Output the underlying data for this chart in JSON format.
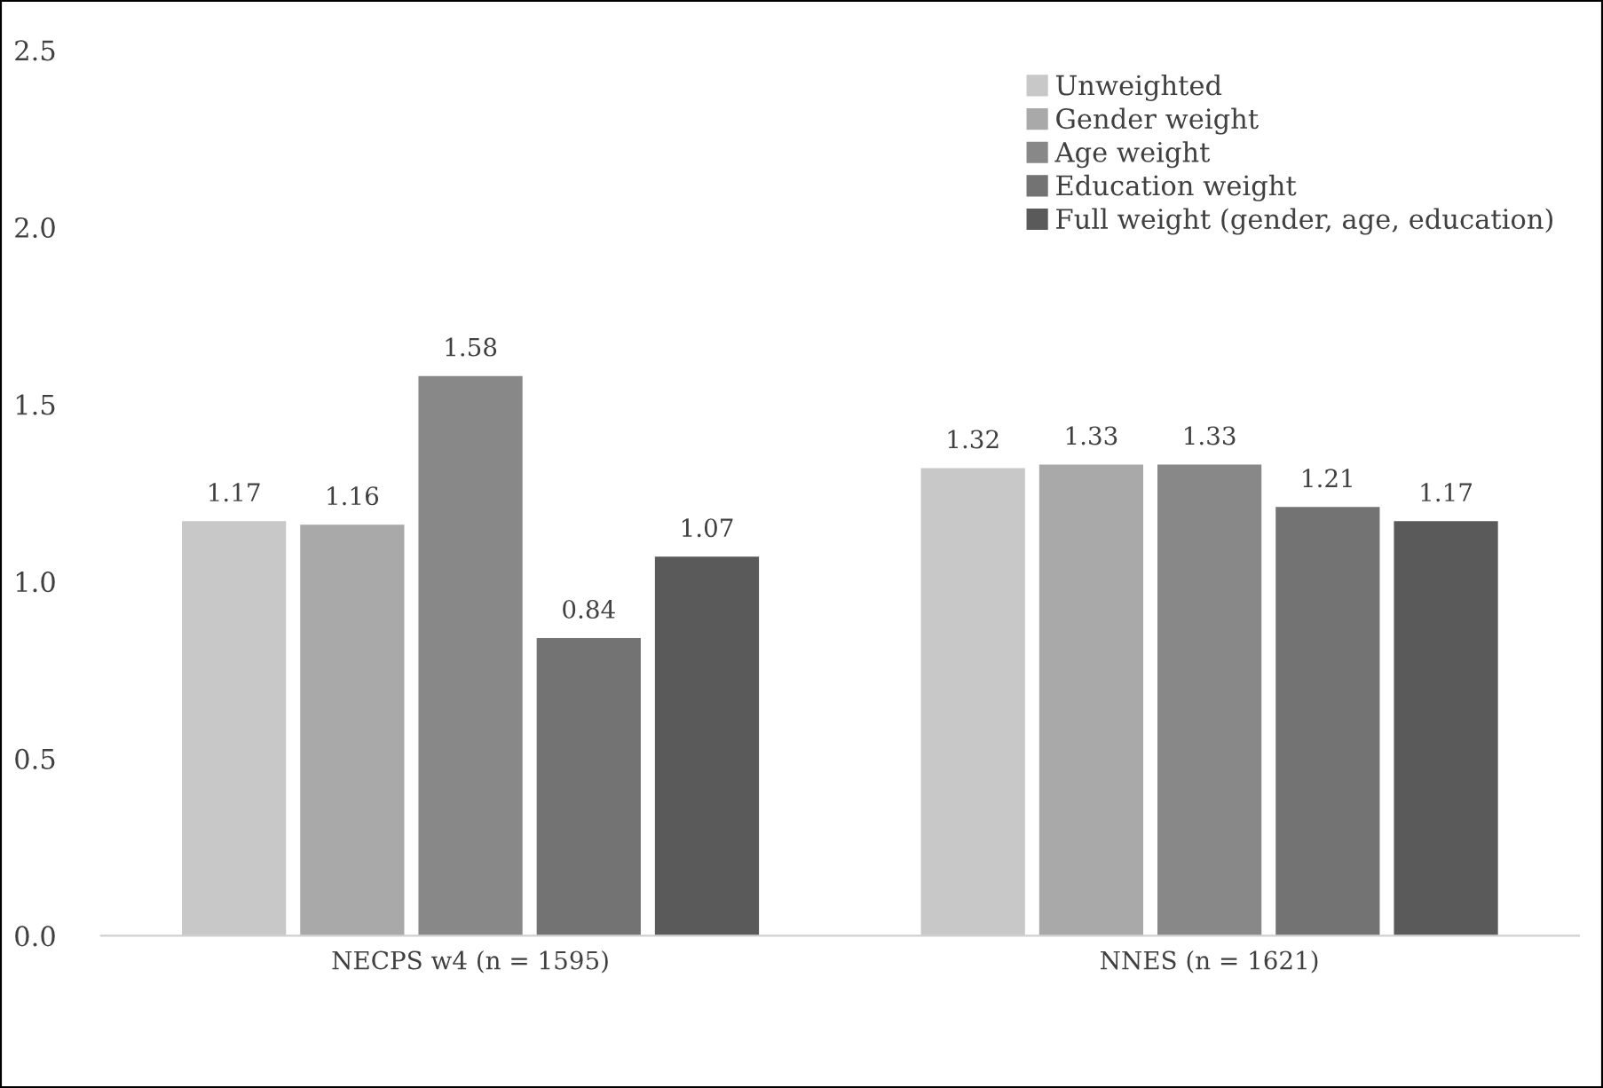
{
  "chart_data": {
    "type": "bar",
    "categories": [
      "NECPS w4 (n = 1595)",
      "NNES (n = 1621)"
    ],
    "series": [
      {
        "name": "Unweighted",
        "color": "#c8c8c8",
        "values": [
          1.17,
          1.32
        ]
      },
      {
        "name": "Gender weight",
        "color": "#a9a9a9",
        "values": [
          1.16,
          1.33
        ]
      },
      {
        "name": "Age weight",
        "color": "#888888",
        "values": [
          1.58,
          1.33
        ]
      },
      {
        "name": "Education weight",
        "color": "#737373",
        "values": [
          0.84,
          1.21
        ]
      },
      {
        "name": "Full weight (gender, age, education)",
        "color": "#5a5a5a",
        "values": [
          1.07,
          1.17
        ]
      }
    ],
    "ylim": [
      0,
      2.5
    ],
    "yticks": [
      {
        "value": 0,
        "label": "0.0"
      },
      {
        "value": 0.5,
        "label": "0.5"
      },
      {
        "value": 1,
        "label": "1.0"
      },
      {
        "value": 1.5,
        "label": "1.5"
      },
      {
        "value": 2,
        "label": "2.0"
      },
      {
        "value": 2.5,
        "label": "2.5"
      }
    ],
    "data_labels": true,
    "grid": false,
    "legend": "top right"
  }
}
